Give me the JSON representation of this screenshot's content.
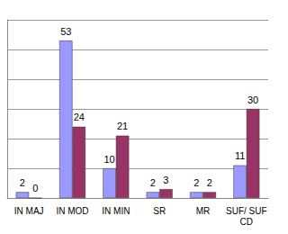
{
  "chart_data": {
    "type": "bar",
    "categories": [
      "IN MAJ",
      "IN MOD",
      "IN MIN",
      "SR",
      "MR",
      "SUF/ SUF\nCD"
    ],
    "series": [
      {
        "color": "#9999ff",
        "values": [
          2,
          53,
          10,
          2,
          2,
          11
        ]
      },
      {
        "color": "#993366",
        "values": [
          0,
          24,
          21,
          3,
          2,
          30
        ]
      }
    ],
    "ylim": [
      0,
      60
    ],
    "yticks": [
      0,
      10,
      20,
      30,
      40,
      50,
      60
    ],
    "grid": true,
    "data_labels": true,
    "tick_labels": "x"
  }
}
